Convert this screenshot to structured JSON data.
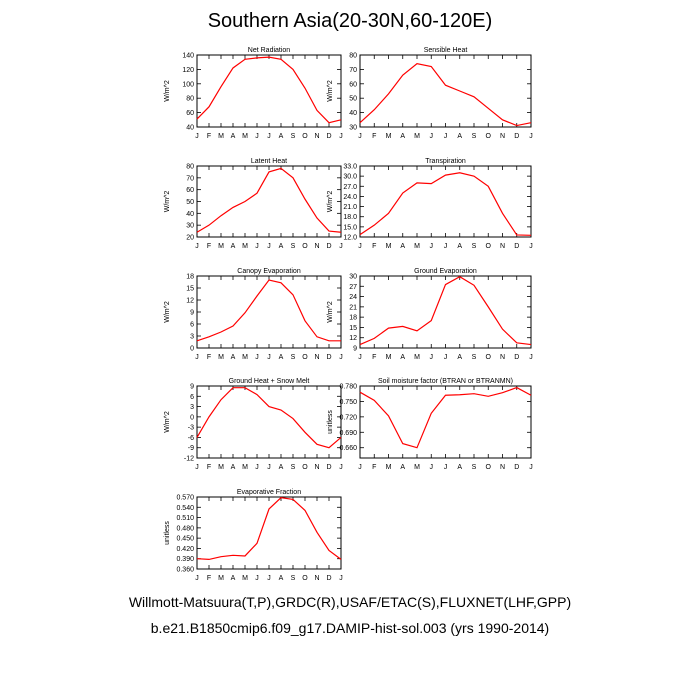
{
  "title": "Southern Asia(20-30N,60-120E)",
  "footer_line1": "Willmott-Matsuura(T,P),GRDC(R),USAF/ETAC(S),FLUXNET(LHF,GPP)",
  "footer_line2": "b.e21.B1850cmip6.f09_g17.DAMIP-hist-sol.003 (yrs 1990-2014)",
  "line_color": "#ff0000",
  "months": [
    "J",
    "F",
    "M",
    "A",
    "M",
    "J",
    "J",
    "A",
    "S",
    "O",
    "N",
    "D",
    "J"
  ],
  "chart_data": [
    {
      "type": "line",
      "title": "Net Radiation",
      "ylabel": "W/m^2",
      "ylim": [
        40,
        140
      ],
      "yticks": [
        40,
        60,
        80,
        100,
        120,
        140
      ],
      "ytick_labels": [
        "40",
        "60",
        "80",
        "100",
        "120",
        "140"
      ],
      "values": [
        51,
        68,
        96,
        122,
        134,
        136,
        137,
        134,
        120,
        94,
        63,
        46,
        50
      ]
    },
    {
      "type": "line",
      "title": "Sensible Heat",
      "ylabel": "W/m^2",
      "ylim": [
        30,
        80
      ],
      "yticks": [
        30,
        40,
        50,
        60,
        70,
        80
      ],
      "ytick_labels": [
        "30",
        "40",
        "50",
        "60",
        "70",
        "80"
      ],
      "values": [
        33,
        42,
        53,
        66,
        74,
        72,
        59,
        55,
        51,
        43,
        35,
        31,
        33
      ]
    },
    {
      "type": "line",
      "title": "Latent Heat",
      "ylabel": "W/m^2",
      "ylim": [
        20,
        80
      ],
      "yticks": [
        20,
        30,
        40,
        50,
        60,
        70,
        80
      ],
      "ytick_labels": [
        "20",
        "30",
        "40",
        "50",
        "60",
        "70",
        "80"
      ],
      "values": [
        24,
        30,
        38,
        45,
        50,
        57,
        75,
        78,
        70,
        52,
        36,
        25,
        24
      ]
    },
    {
      "type": "line",
      "title": "Transpiration",
      "ylabel": "W/m^2",
      "ylim": [
        12,
        33
      ],
      "yticks": [
        12,
        15,
        18,
        21,
        24,
        27,
        30,
        33
      ],
      "ytick_labels": [
        "12.0",
        "15.0",
        "18.0",
        "21.0",
        "24.0",
        "27.0",
        "30.0",
        "33.0"
      ],
      "values": [
        12.7,
        15.5,
        19.0,
        25.0,
        28.0,
        27.8,
        30.3,
        31.0,
        30.0,
        27.0,
        19.0,
        12.6,
        12.5
      ]
    },
    {
      "type": "line",
      "title": "Canopy Evaporation",
      "ylabel": "W/m^2",
      "ylim": [
        0,
        18
      ],
      "yticks": [
        0,
        3,
        6,
        9,
        12,
        15,
        18
      ],
      "ytick_labels": [
        "0",
        "3",
        "6",
        "9",
        "12",
        "15",
        "18"
      ],
      "values": [
        1.8,
        2.8,
        4.0,
        5.5,
        8.8,
        13.0,
        17.0,
        16.3,
        13.3,
        6.8,
        2.8,
        1.8,
        1.8
      ]
    },
    {
      "type": "line",
      "title": "Ground Evaporation",
      "ylabel": "W/m^2",
      "ylim": [
        9,
        30
      ],
      "yticks": [
        9,
        12,
        15,
        18,
        21,
        24,
        27,
        30
      ],
      "ytick_labels": [
        "9",
        "12",
        "15",
        "18",
        "21",
        "24",
        "27",
        "30"
      ],
      "values": [
        10.0,
        11.8,
        14.8,
        15.3,
        14.0,
        17.0,
        27.5,
        29.8,
        27.3,
        21.0,
        14.5,
        10.5,
        10.0
      ]
    },
    {
      "type": "line",
      "title": "Ground Heat + Snow Melt",
      "ylabel": "W/m^2",
      "ylim": [
        -12,
        9
      ],
      "yticks": [
        -12,
        -9,
        -6,
        -3,
        0,
        3,
        6,
        9
      ],
      "ytick_labels": [
        "-12",
        "-9",
        "-6",
        "-3",
        "0",
        "3",
        "6",
        "9"
      ],
      "values": [
        -6.0,
        0.0,
        5.0,
        8.5,
        8.5,
        6.5,
        3.0,
        2.0,
        -0.5,
        -4.5,
        -8.0,
        -9.0,
        -6.0
      ]
    },
    {
      "type": "line",
      "title": "Soil moisture factor (BTRAN or BTRANMN)",
      "ylabel": "unitless",
      "ylim": [
        0.64,
        0.78
      ],
      "yticks": [
        0.66,
        0.69,
        0.72,
        0.75,
        0.78
      ],
      "ytick_labels": [
        "0.660",
        "0.690",
        "0.720",
        "0.750",
        "0.780"
      ],
      "values": [
        0.768,
        0.752,
        0.722,
        0.668,
        0.66,
        0.727,
        0.762,
        0.763,
        0.765,
        0.76,
        0.767,
        0.777,
        0.762
      ]
    },
    {
      "type": "line",
      "title": "Evaporative Fraction",
      "ylabel": "unitless",
      "ylim": [
        0.36,
        0.57
      ],
      "yticks": [
        0.36,
        0.39,
        0.42,
        0.45,
        0.48,
        0.51,
        0.54,
        0.57
      ],
      "ytick_labels": [
        "0.360",
        "0.390",
        "0.420",
        "0.450",
        "0.480",
        "0.510",
        "0.540",
        "0.570"
      ],
      "values": [
        0.39,
        0.388,
        0.396,
        0.4,
        0.398,
        0.435,
        0.535,
        0.568,
        0.563,
        0.531,
        0.467,
        0.414,
        0.388
      ]
    }
  ]
}
